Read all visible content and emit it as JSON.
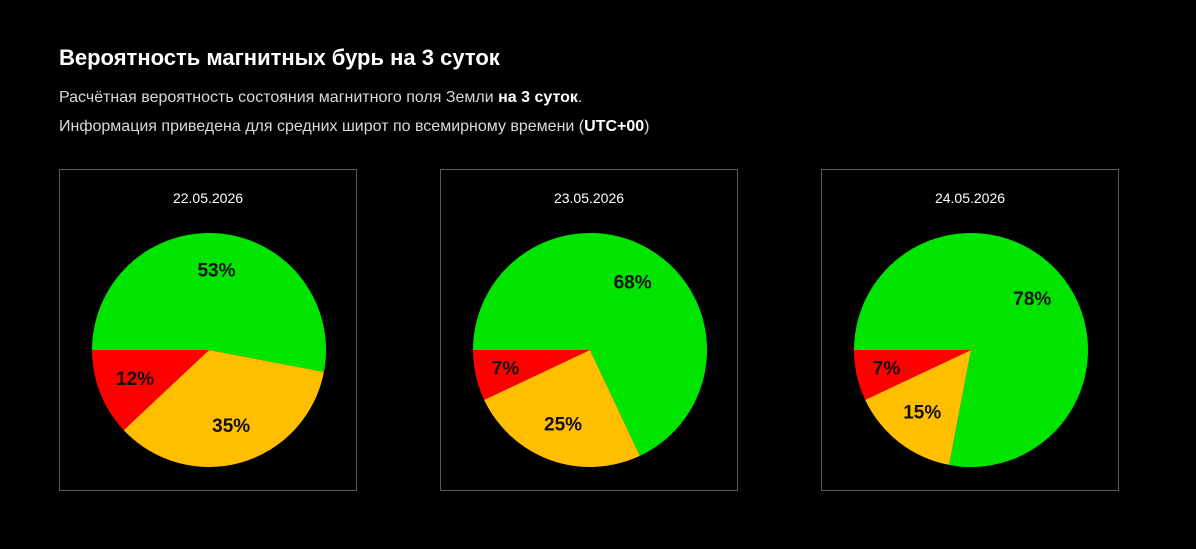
{
  "header": {
    "title": "Вероятность магнитных бурь на 3 суток",
    "line1_text": "Расчётная вероятность состояния магнитного поля Земли ",
    "line1_bold": "на 3 суток",
    "line1_end": ".",
    "line2_text": "Информация приведена для средних широт по всемирному времени (",
    "line2_bold": "UTC+00",
    "line2_end": ")"
  },
  "colors": {
    "green": "#00e400",
    "orange": "#ffbe00",
    "red": "#ff0000"
  },
  "chart_data": [
    {
      "type": "pie",
      "title": "22.05.2026",
      "slices": [
        {
          "color": "green",
          "value": 53,
          "label": "53%"
        },
        {
          "color": "orange",
          "value": 35,
          "label": "35%"
        },
        {
          "color": "red",
          "value": 12,
          "label": "12%"
        }
      ]
    },
    {
      "type": "pie",
      "title": "23.05.2026",
      "slices": [
        {
          "color": "green",
          "value": 68,
          "label": "68%"
        },
        {
          "color": "orange",
          "value": 25,
          "label": "25%"
        },
        {
          "color": "red",
          "value": 7,
          "label": "7%"
        }
      ]
    },
    {
      "type": "pie",
      "title": "24.05.2026",
      "slices": [
        {
          "color": "green",
          "value": 78,
          "label": "78%"
        },
        {
          "color": "orange",
          "value": 15,
          "label": "15%"
        },
        {
          "color": "red",
          "value": 7,
          "label": "7%"
        }
      ]
    }
  ]
}
